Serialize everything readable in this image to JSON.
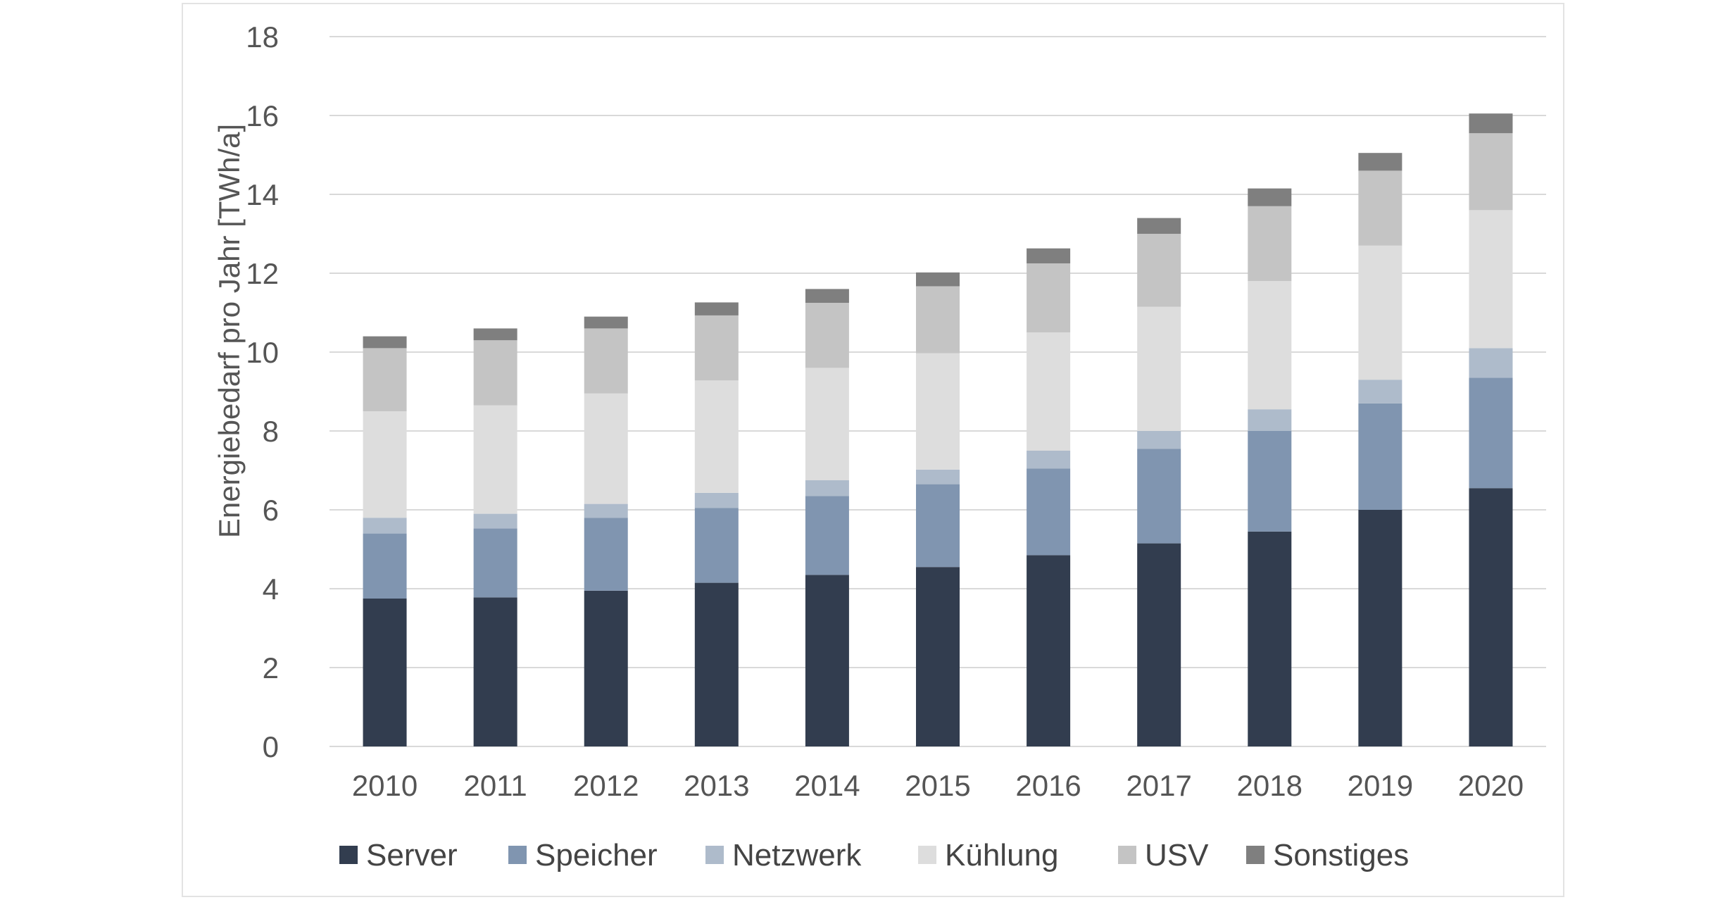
{
  "chart_data": {
    "type": "bar",
    "stacked": true,
    "title": "",
    "xlabel": "",
    "ylabel": "Energiebedarf pro Jahr [TWh/a]",
    "ylim": [
      0,
      18
    ],
    "yticks": [
      0,
      2,
      4,
      6,
      8,
      10,
      12,
      14,
      16,
      18
    ],
    "grid": true,
    "legend_position": "bottom",
    "categories": [
      "2010",
      "2011",
      "2012",
      "2013",
      "2014",
      "2015",
      "2016",
      "2017",
      "2018",
      "2019",
      "2020"
    ],
    "series": [
      {
        "name": "Server",
        "color": "#323d4f",
        "values": [
          3.75,
          3.78,
          3.95,
          4.15,
          4.35,
          4.55,
          4.85,
          5.15,
          5.45,
          6.0,
          6.55
        ]
      },
      {
        "name": "Speicher",
        "color": "#8095b0",
        "values": [
          1.65,
          1.75,
          1.85,
          1.9,
          2.0,
          2.1,
          2.2,
          2.4,
          2.55,
          2.7,
          2.8
        ]
      },
      {
        "name": "Netzwerk",
        "color": "#aebbcb",
        "values": [
          0.4,
          0.37,
          0.35,
          0.38,
          0.4,
          0.37,
          0.45,
          0.45,
          0.55,
          0.6,
          0.75
        ]
      },
      {
        "name": "Kühlung",
        "color": "#dddddd",
        "values": [
          2.7,
          2.75,
          2.8,
          2.85,
          2.85,
          2.95,
          3.0,
          3.15,
          3.25,
          3.4,
          3.5
        ]
      },
      {
        "name": "USV",
        "color": "#c4c4c4",
        "values": [
          1.6,
          1.65,
          1.65,
          1.65,
          1.65,
          1.7,
          1.75,
          1.85,
          1.9,
          1.9,
          1.95
        ]
      },
      {
        "name": "Sonstiges",
        "color": "#7f7f7f",
        "values": [
          0.3,
          0.3,
          0.3,
          0.33,
          0.35,
          0.35,
          0.38,
          0.4,
          0.45,
          0.45,
          0.5
        ]
      }
    ]
  }
}
